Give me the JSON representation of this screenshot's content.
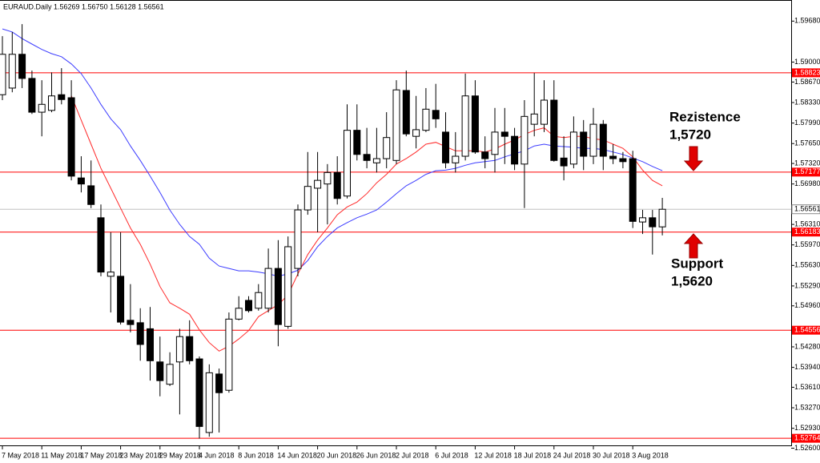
{
  "chart_data": {
    "type": "candlestick",
    "header": "EURAUD.Daily  1.56269 1.56750 1.56128 1.56561",
    "categories": [
      "7 May 2018",
      null,
      null,
      null,
      "11 May 2018",
      null,
      null,
      null,
      "17 May 2018",
      null,
      null,
      null,
      "23 May 2018",
      null,
      null,
      null,
      "29 May 2018",
      null,
      null,
      null,
      "4 Jun 2018",
      null,
      null,
      null,
      "8 Jun 2018",
      null,
      null,
      null,
      "14 Jun 2018",
      null,
      null,
      null,
      "20 Jun 2018",
      null,
      null,
      null,
      "26 Jun 2018",
      null,
      null,
      null,
      "2 Jul 2018",
      null,
      null,
      null,
      "6 Jul 2018",
      null,
      null,
      null,
      "12 Jul 2018",
      null,
      null,
      null,
      "18 Jul 2018",
      null,
      null,
      null,
      "24 Jul 2018",
      null,
      null,
      null,
      "30 Jul 2018",
      null,
      null,
      null,
      "3 Aug 2018",
      null,
      null,
      null
    ],
    "open": [
      1.5846,
      1.5857,
      1.5913,
      1.5873,
      1.5817,
      1.582,
      1.5846,
      1.5841,
      1.5708,
      1.5695,
      1.5642,
      1.5545,
      1.5545,
      1.5472,
      1.5468,
      1.5458,
      1.5403,
      1.5366,
      1.5403,
      1.5445,
      1.5408,
      1.5286,
      1.5383,
      1.5356,
      1.5474,
      1.5505,
      1.5492,
      1.5492,
      1.5558,
      1.5462,
      1.5558,
      1.5655,
      1.5691,
      1.5698,
      1.5717,
      1.5678,
      1.5787,
      1.5747,
      1.5733,
      1.574,
      1.5737,
      1.5853,
      1.5777,
      1.5787,
      1.582,
      1.5784,
      1.5733,
      1.5744,
      1.5844,
      1.5751,
      1.5747,
      1.5784,
      1.5777,
      1.5731,
      1.5797,
      1.5797,
      1.5837,
      1.5741,
      1.5731,
      1.5784,
      1.5744,
      1.5797,
      1.5744,
      1.574,
      1.574,
      1.5635,
      1.5642,
      1.56269
    ],
    "high": [
      1.5943,
      1.595,
      1.5963,
      1.5886,
      1.587,
      1.5883,
      1.589,
      1.587,
      1.5744,
      1.5737,
      1.5664,
      1.5618,
      1.5618,
      1.5532,
      1.5492,
      1.5494,
      1.5445,
      1.5419,
      1.5458,
      1.5472,
      1.5412,
      1.5399,
      1.5392,
      1.5485,
      1.5512,
      1.5512,
      1.5532,
      1.5591,
      1.5605,
      1.5611,
      1.5664,
      1.5751,
      1.5751,
      1.5731,
      1.5744,
      1.583,
      1.583,
      1.5791,
      1.5791,
      1.5817,
      1.587,
      1.5886,
      1.5844,
      1.5857,
      1.5864,
      1.5817,
      1.5784,
      1.5881,
      1.587,
      1.5777,
      1.5824,
      1.5824,
      1.5791,
      1.5837,
      1.5882,
      1.587,
      1.587,
      1.5777,
      1.581,
      1.5804,
      1.5824,
      1.5804,
      1.5764,
      1.5751,
      1.5753,
      1.5655,
      1.5655,
      1.5675
    ],
    "low": [
      1.5837,
      1.585,
      1.5857,
      1.5814,
      1.5777,
      1.5817,
      1.583,
      1.5704,
      1.5684,
      1.5658,
      1.5545,
      1.5485,
      1.5465,
      1.5452,
      1.5405,
      1.5372,
      1.5346,
      1.5363,
      1.5316,
      1.5399,
      1.5276,
      1.5279,
      1.5286,
      1.5352,
      1.5472,
      1.5485,
      1.5488,
      1.5485,
      1.5429,
      1.5458,
      1.5545,
      1.5647,
      1.5618,
      1.5631,
      1.5664,
      1.5674,
      1.5737,
      1.5724,
      1.5717,
      1.5724,
      1.5731,
      1.5777,
      1.5757,
      1.5784,
      1.5791,
      1.5724,
      1.5717,
      1.5737,
      1.5748,
      1.5724,
      1.5717,
      1.5731,
      1.5721,
      1.5658,
      1.5777,
      1.5784,
      1.5735,
      1.5704,
      1.5724,
      1.5721,
      1.5731,
      1.5721,
      1.5731,
      1.5724,
      1.5625,
      1.5615,
      1.5581,
      1.56128
    ],
    "close": [
      1.5913,
      1.5913,
      1.5873,
      1.5817,
      1.583,
      1.5844,
      1.5838,
      1.5711,
      1.5698,
      1.5664,
      1.5552,
      1.5552,
      1.5469,
      1.5465,
      1.5432,
      1.5405,
      1.5372,
      1.5399,
      1.5445,
      1.5405,
      1.5296,
      1.5385,
      1.5352,
      1.5474,
      1.5492,
      1.5488,
      1.5518,
      1.5558,
      1.5465,
      1.5594,
      1.5655,
      1.5694,
      1.5704,
      1.5717,
      1.5674,
      1.5787,
      1.5747,
      1.5737,
      1.574,
      1.5775,
      1.5854,
      1.5781,
      1.5788,
      1.5822,
      1.5806,
      1.5733,
      1.5744,
      1.5844,
      1.5751,
      1.574,
      1.5784,
      1.5777,
      1.5731,
      1.581,
      1.5814,
      1.5837,
      1.5737,
      1.5728,
      1.5784,
      1.5744,
      1.5797,
      1.5744,
      1.574,
      1.5735,
      1.5636,
      1.5642,
      1.5627,
      1.56561
    ],
    "lines": [
      {
        "color": "#3c3cff",
        "values": [
          1.5955,
          1.595,
          1.5939,
          1.593,
          1.5921,
          1.5914,
          1.5909,
          1.5897,
          1.5881,
          1.5857,
          1.583,
          1.5806,
          1.5788,
          1.5761,
          1.5737,
          1.5711,
          1.5684,
          1.5655,
          1.5631,
          1.5611,
          1.5598,
          1.5575,
          1.5562,
          1.5558,
          1.5554,
          1.5554,
          1.5552,
          1.5549,
          1.5545,
          1.5549,
          1.5555,
          1.5571,
          1.5594,
          1.5611,
          1.5625,
          1.5634,
          1.5642,
          1.5648,
          1.5655,
          1.5668,
          1.5682,
          1.5695,
          1.5704,
          1.5714,
          1.572,
          1.5721,
          1.5724,
          1.5729,
          1.5733,
          1.5735,
          1.5737,
          1.5743,
          1.5748,
          1.5753,
          1.5761,
          1.5764,
          1.5761,
          1.576,
          1.5759,
          1.5757,
          1.5757,
          1.5755,
          1.5751,
          1.5747,
          1.5741,
          1.5735,
          1.5727,
          1.572
        ]
      },
      {
        "color": "#ff2a2a",
        "values": [
          null,
          null,
          null,
          null,
          null,
          null,
          null,
          1.5844,
          1.5804,
          1.5764,
          1.5724,
          1.5691,
          1.5658,
          1.5625,
          1.5598,
          1.5565,
          1.5528,
          1.5501,
          1.5492,
          1.5482,
          1.5456,
          1.5435,
          1.5421,
          1.5429,
          1.5441,
          1.5455,
          1.5478,
          1.5488,
          1.5498,
          1.5514,
          1.5549,
          1.5581,
          1.5605,
          1.5625,
          1.5647,
          1.566,
          1.5668,
          1.5682,
          1.57,
          1.5714,
          1.5731,
          1.574,
          1.5751,
          1.5764,
          1.5767,
          1.576,
          1.5753,
          1.5753,
          1.5753,
          1.5751,
          1.5756,
          1.5764,
          1.5771,
          1.578,
          1.5787,
          1.5791,
          1.5777,
          1.5775,
          1.5777,
          1.5777,
          1.5773,
          1.5771,
          1.5764,
          1.5757,
          1.5743,
          1.5721,
          1.5704,
          1.5695
        ]
      }
    ],
    "levels": [
      1.58823,
      1.57177,
      1.56183,
      1.54556,
      1.52764
    ],
    "level_color": "#ff0000",
    "ylim": [
      1.526,
      1.6003
    ],
    "yticks": [
      {
        "value": 1.5968,
        "label": "1.59680"
      },
      {
        "value": 1.59,
        "label": "1.59000"
      },
      {
        "value": 1.5867,
        "label": "1.58670"
      },
      {
        "value": 1.5833,
        "label": "1.58330"
      },
      {
        "value": 1.5799,
        "label": "1.57990"
      },
      {
        "value": 1.5765,
        "label": "1.57650"
      },
      {
        "value": 1.5732,
        "label": "1.57320"
      },
      {
        "value": 1.5698,
        "label": "1.56980"
      },
      {
        "value": 1.5631,
        "label": "1.56310"
      },
      {
        "value": 1.5597,
        "label": "1.55970"
      },
      {
        "value": 1.5563,
        "label": "1.55630"
      },
      {
        "value": 1.5529,
        "label": "1.55290"
      },
      {
        "value": 1.5496,
        "label": "1.54960"
      },
      {
        "value": 1.5428,
        "label": "1.54280"
      },
      {
        "value": 1.5394,
        "label": "1.53940"
      },
      {
        "value": 1.5361,
        "label": "1.53610"
      },
      {
        "value": 1.5327,
        "label": "1.53270"
      },
      {
        "value": 1.5293,
        "label": "1.52930"
      },
      {
        "value": 1.526,
        "label": "1.52600"
      }
    ],
    "annotations": [
      {
        "title": "Rezistence",
        "label": "1,5720"
      },
      {
        "title": "Support",
        "label": "1,5620"
      }
    ]
  }
}
